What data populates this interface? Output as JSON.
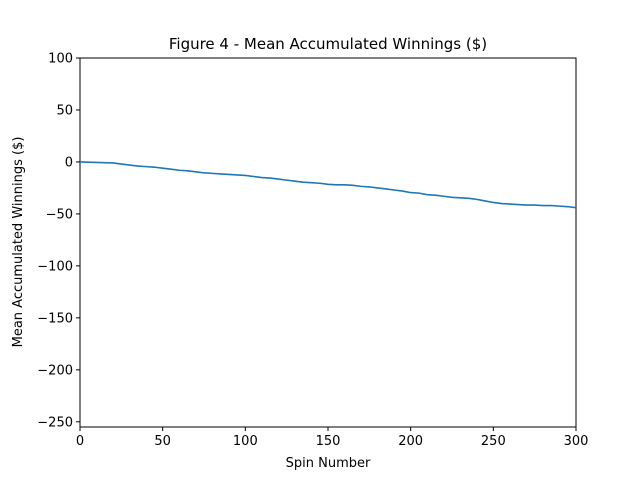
{
  "chart_data": {
    "type": "line",
    "title": "Figure 4 - Mean Accumulated Winnings ($)",
    "xlabel": "Spin Number",
    "ylabel": "Mean Accumulated Winnings ($)",
    "xlim": [
      0,
      300
    ],
    "ylim": [
      -255,
      100
    ],
    "xticks": [
      "0",
      "50",
      "100",
      "150",
      "200",
      "250",
      "300"
    ],
    "yticks": [
      "100",
      "50",
      "0",
      "−50",
      "−100",
      "−150",
      "−200",
      "−250"
    ],
    "grid": false,
    "series": [
      {
        "color": "#1f77b4",
        "x": [
          0,
          10,
          20,
          25,
          30,
          35,
          40,
          45,
          50,
          55,
          60,
          65,
          70,
          75,
          80,
          85,
          90,
          95,
          100,
          105,
          110,
          115,
          120,
          125,
          130,
          135,
          140,
          145,
          150,
          155,
          160,
          165,
          170,
          175,
          180,
          185,
          190,
          195,
          200,
          205,
          210,
          215,
          220,
          225,
          230,
          235,
          240,
          245,
          250,
          255,
          260,
          265,
          270,
          275,
          280,
          285,
          290,
          295,
          300
        ],
        "y": [
          0,
          -0.5,
          -1,
          -2,
          -3,
          -4,
          -4.5,
          -5,
          -6,
          -7,
          -8,
          -8.5,
          -9.5,
          -10.5,
          -11,
          -11.5,
          -12,
          -12.5,
          -13,
          -14,
          -15,
          -15.5,
          -16.5,
          -17.5,
          -18.5,
          -19.5,
          -20,
          -20.5,
          -21.5,
          -22,
          -22,
          -22.5,
          -23.5,
          -24,
          -25,
          -26,
          -27,
          -28,
          -29.5,
          -30,
          -31.5,
          -32,
          -33,
          -34,
          -34.5,
          -35,
          -36,
          -37.5,
          -39,
          -40,
          -40.5,
          -41,
          -41.5,
          -41.5,
          -42,
          -42,
          -42.5,
          -43,
          -44
        ]
      }
    ]
  }
}
